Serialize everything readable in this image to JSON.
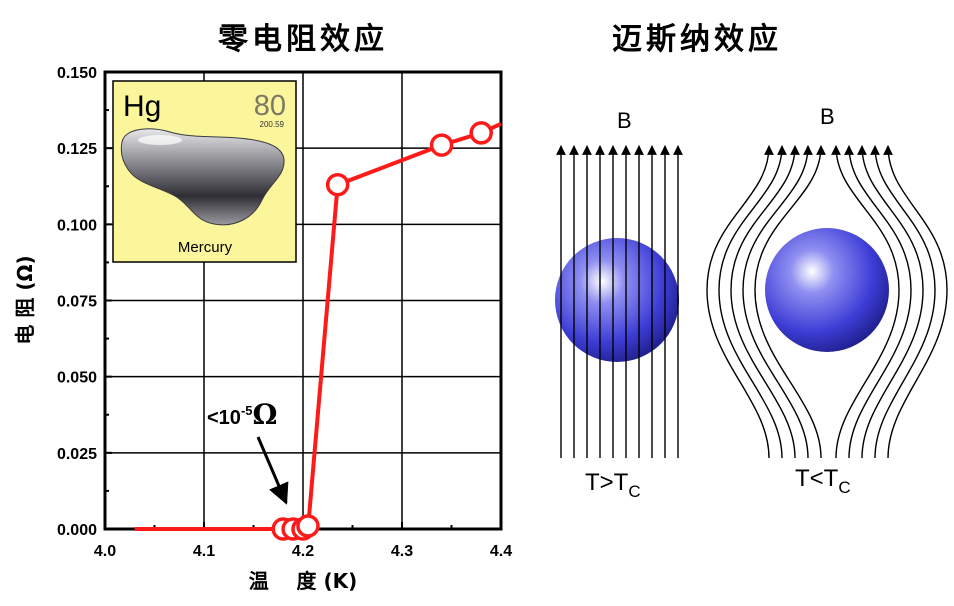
{
  "titles": {
    "zero_resistance": "零电阻效应",
    "meissner": "迈斯纳效应"
  },
  "chart_data": {
    "type": "line",
    "xlabel": "温    度 (K)",
    "ylabel": "电 阻 (Ω)",
    "xlim": [
      4.0,
      4.4
    ],
    "ylim": [
      0.0,
      0.15
    ],
    "x_ticks": [
      "4.0",
      "4.1",
      "4.2",
      "4.3",
      "4.4"
    ],
    "y_ticks": [
      "0.000",
      "0.025",
      "0.050",
      "0.075",
      "0.100",
      "0.125",
      "0.150"
    ],
    "grid": true,
    "series": [
      {
        "color": "#ff1a1a",
        "line": [
          [
            4.03,
            0.0
          ],
          [
            4.205,
            0.0
          ],
          [
            4.235,
            0.113
          ],
          [
            4.34,
            0.126
          ],
          [
            4.38,
            0.13
          ],
          [
            4.4,
            0.133
          ]
        ],
        "markers": [
          [
            4.18,
            0.0
          ],
          [
            4.19,
            0.0
          ],
          [
            4.2,
            0.0
          ],
          [
            4.205,
            0.001
          ],
          [
            4.235,
            0.113
          ],
          [
            4.34,
            0.126
          ],
          [
            4.38,
            0.13
          ]
        ]
      }
    ],
    "annotation": {
      "base": "<10",
      "exponent": "-5",
      "unit": "Ω",
      "points_to": [
        4.183,
        0.004
      ]
    }
  },
  "inset": {
    "symbol": "Hg",
    "atomic_number": "80",
    "atomic_mass": "200.59",
    "name": "Mercury",
    "background": "#fbf59b"
  },
  "meissner": {
    "field_label": "B",
    "left_condition": {
      "main": "T>T",
      "sub": "C"
    },
    "right_condition": {
      "main": "T<T",
      "sub": "C"
    },
    "sphere_color": "#3d3dd6"
  }
}
